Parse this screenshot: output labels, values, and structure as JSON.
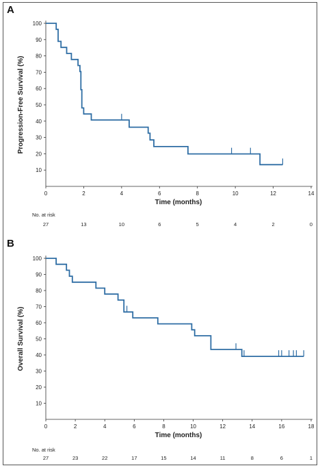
{
  "chart_data": [
    {
      "panel": "A",
      "type": "line",
      "step": true,
      "xlabel": "Time (months)",
      "ylabel": "Progression-Free Survival (%)",
      "xlim": [
        0,
        14
      ],
      "ylim": [
        0,
        100
      ],
      "xticks": [
        "0",
        "2",
        "4",
        "6",
        "8",
        "10",
        "12",
        "14"
      ],
      "yticks": [
        "10",
        "20",
        "30",
        "40",
        "50",
        "60",
        "70",
        "80",
        "90",
        "100"
      ],
      "color": "#2e6da4",
      "series": [
        {
          "points": [
            [
              0,
              100
            ],
            [
              0.55,
              100
            ],
            [
              0.55,
              96.3
            ],
            [
              0.65,
              96.3
            ],
            [
              0.65,
              88.9
            ],
            [
              0.8,
              88.9
            ],
            [
              0.8,
              85.2
            ],
            [
              1.1,
              85.2
            ],
            [
              1.1,
              81.5
            ],
            [
              1.35,
              81.5
            ],
            [
              1.35,
              77.8
            ],
            [
              1.7,
              77.8
            ],
            [
              1.7,
              74.1
            ],
            [
              1.8,
              74.1
            ],
            [
              1.8,
              70.4
            ],
            [
              1.85,
              70.4
            ],
            [
              1.85,
              59.3
            ],
            [
              1.9,
              59.3
            ],
            [
              1.9,
              48.1
            ],
            [
              2.0,
              48.1
            ],
            [
              2.0,
              44.4
            ],
            [
              2.4,
              44.4
            ],
            [
              2.4,
              40.7
            ],
            [
              4.4,
              40.7
            ],
            [
              4.4,
              36.3
            ],
            [
              5.4,
              36.3
            ],
            [
              5.4,
              32.6
            ],
            [
              5.5,
              32.6
            ],
            [
              5.5,
              28.5
            ],
            [
              5.7,
              28.5
            ],
            [
              5.7,
              24.4
            ],
            [
              7.5,
              24.4
            ],
            [
              7.5,
              19.9
            ],
            [
              11.3,
              19.9
            ],
            [
              11.3,
              13.3
            ],
            [
              12.5,
              13.3
            ]
          ],
          "censored": [
            [
              4.0,
              40.7
            ],
            [
              9.8,
              19.9
            ],
            [
              10.8,
              19.9
            ],
            [
              12.5,
              13.3
            ]
          ]
        }
      ],
      "risk_table": {
        "title": "No. at risk",
        "times": [
          0,
          2,
          4,
          6,
          8,
          10,
          12,
          14
        ],
        "values": [
          "27",
          "13",
          "10",
          "6",
          "5",
          "4",
          "2",
          "0"
        ]
      }
    },
    {
      "panel": "B",
      "type": "line",
      "step": true,
      "xlabel": "Time (months)",
      "ylabel": "Overall Survival (%)",
      "xlim": [
        0,
        18
      ],
      "ylim": [
        0,
        100
      ],
      "xticks": [
        "0",
        "2",
        "4",
        "6",
        "8",
        "10",
        "12",
        "14",
        "16",
        "18"
      ],
      "yticks": [
        "10",
        "20",
        "30",
        "40",
        "50",
        "60",
        "70",
        "80",
        "90",
        "100"
      ],
      "color": "#2e6da4",
      "series": [
        {
          "points": [
            [
              0,
              100
            ],
            [
              0.7,
              100
            ],
            [
              0.7,
              96.3
            ],
            [
              1.4,
              96.3
            ],
            [
              1.4,
              92.6
            ],
            [
              1.6,
              92.6
            ],
            [
              1.6,
              88.9
            ],
            [
              1.8,
              88.9
            ],
            [
              1.8,
              85.2
            ],
            [
              3.4,
              85.2
            ],
            [
              3.4,
              81.5
            ],
            [
              4.0,
              81.5
            ],
            [
              4.0,
              77.8
            ],
            [
              4.9,
              77.8
            ],
            [
              4.9,
              74.1
            ],
            [
              5.3,
              74.1
            ],
            [
              5.3,
              66.7
            ],
            [
              5.9,
              66.7
            ],
            [
              5.9,
              63.0
            ],
            [
              7.6,
              63.0
            ],
            [
              7.6,
              59.3
            ],
            [
              9.9,
              59.3
            ],
            [
              9.9,
              55.6
            ],
            [
              10.1,
              55.6
            ],
            [
              10.1,
              51.9
            ],
            [
              11.2,
              51.9
            ],
            [
              11.2,
              43.4
            ],
            [
              13.3,
              43.4
            ],
            [
              13.3,
              39.1
            ],
            [
              17.5,
              39.1
            ]
          ],
          "censored": [
            [
              5.5,
              66.7
            ],
            [
              12.9,
              43.4
            ],
            [
              13.45,
              39.1
            ],
            [
              15.8,
              39.1
            ],
            [
              16.0,
              39.1
            ],
            [
              16.5,
              39.1
            ],
            [
              16.8,
              39.1
            ],
            [
              17.0,
              39.1
            ],
            [
              17.5,
              39.1
            ]
          ]
        }
      ],
      "risk_table": {
        "title": "No. at risk",
        "times": [
          0,
          2,
          4,
          6,
          8,
          10,
          12,
          14,
          16,
          18
        ],
        "values": [
          "27",
          "23",
          "22",
          "17",
          "15",
          "14",
          "11",
          "8",
          "6",
          "1"
        ]
      }
    }
  ]
}
